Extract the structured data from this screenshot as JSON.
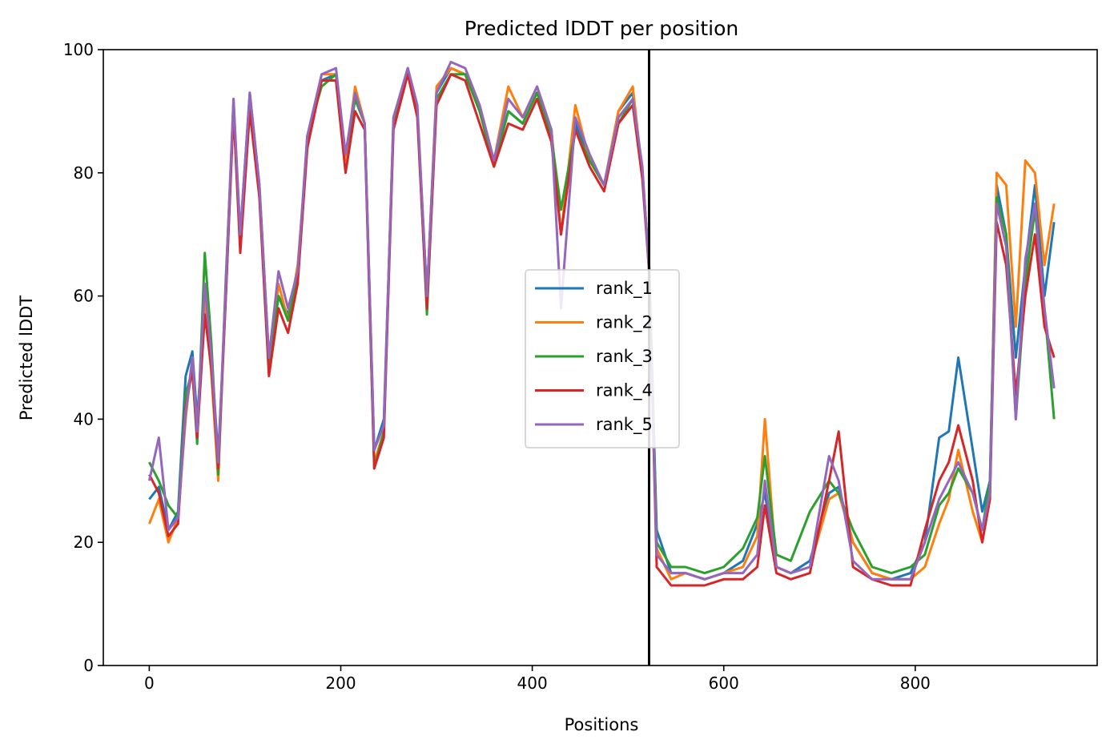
{
  "chart_data": {
    "type": "line",
    "title": "Predicted lDDT per position",
    "xlabel": "Positions",
    "ylabel": "Predicted lDDT",
    "xlim": [
      -48,
      990
    ],
    "ylim": [
      0,
      100
    ],
    "xticks": [
      0,
      200,
      400,
      600,
      800
    ],
    "yticks": [
      0,
      20,
      40,
      60,
      80,
      100
    ],
    "grid": false,
    "legend_position": "center",
    "vline": {
      "x": 522,
      "color": "#000000"
    },
    "colors": {
      "rank_1": "#1f77b4",
      "rank_2": "#ff7f0e",
      "rank_3": "#2ca02c",
      "rank_4": "#d62728",
      "rank_5": "#9467bd"
    },
    "x": [
      0,
      10,
      20,
      30,
      38,
      45,
      50,
      58,
      65,
      72,
      80,
      88,
      95,
      105,
      115,
      125,
      135,
      145,
      155,
      165,
      180,
      195,
      205,
      215,
      225,
      235,
      245,
      255,
      270,
      280,
      290,
      300,
      315,
      330,
      345,
      360,
      375,
      390,
      405,
      420,
      430,
      445,
      460,
      475,
      490,
      505,
      515,
      522,
      530,
      545,
      560,
      580,
      600,
      620,
      635,
      643,
      655,
      670,
      690,
      710,
      720,
      735,
      755,
      775,
      795,
      810,
      825,
      835,
      845,
      860,
      870,
      878,
      885,
      895,
      905,
      915,
      925,
      935,
      945
    ],
    "series": [
      {
        "name": "rank_1",
        "values": [
          27,
          29,
          22,
          25,
          47,
          51,
          40,
          58,
          50,
          34,
          60,
          91,
          70,
          93,
          78,
          50,
          60,
          57,
          64,
          85,
          95,
          96,
          82,
          92,
          88,
          35,
          40,
          88,
          97,
          90,
          60,
          93,
          97,
          96,
          90,
          82,
          90,
          88,
          93,
          87,
          70,
          88,
          82,
          78,
          90,
          93,
          80,
          65,
          22,
          15,
          15,
          14,
          15,
          17,
          23,
          28,
          16,
          15,
          17,
          28,
          29,
          20,
          15,
          14,
          15,
          20,
          37,
          38,
          50,
          35,
          25,
          30,
          78,
          70,
          50,
          65,
          78,
          60,
          72
        ]
      },
      {
        "name": "rank_2",
        "values": [
          23,
          27,
          20,
          24,
          40,
          50,
          38,
          60,
          47,
          30,
          62,
          92,
          68,
          92,
          77,
          48,
          62,
          56,
          65,
          84,
          96,
          96,
          82,
          94,
          88,
          33,
          38,
          89,
          97,
          90,
          60,
          94,
          97,
          96,
          91,
          82,
          94,
          89,
          94,
          87,
          70,
          91,
          82,
          78,
          90,
          94,
          80,
          65,
          19,
          14,
          15,
          14,
          15,
          16,
          21,
          40,
          16,
          15,
          16,
          27,
          28,
          20,
          15,
          14,
          14,
          16,
          23,
          27,
          35,
          25,
          20,
          28,
          80,
          78,
          55,
          82,
          80,
          65,
          75
        ]
      },
      {
        "name": "rank_3",
        "values": [
          33,
          30,
          26,
          24,
          44,
          48,
          36,
          67,
          52,
          31,
          63,
          90,
          69,
          92,
          77,
          48,
          60,
          56,
          63,
          86,
          94,
          96,
          83,
          92,
          88,
          32,
          38,
          88,
          96,
          90,
          57,
          92,
          96,
          96,
          90,
          81,
          90,
          88,
          93,
          86,
          74,
          87,
          82,
          78,
          88,
          92,
          80,
          65,
          20,
          16,
          16,
          15,
          16,
          19,
          24,
          34,
          18,
          17,
          25,
          30,
          28,
          22,
          16,
          15,
          16,
          18,
          26,
          28,
          32,
          28,
          22,
          30,
          76,
          70,
          40,
          62,
          74,
          58,
          40
        ]
      },
      {
        "name": "rank_4",
        "values": [
          31,
          28,
          21,
          23,
          42,
          48,
          37,
          57,
          48,
          32,
          60,
          90,
          67,
          90,
          76,
          47,
          58,
          54,
          62,
          84,
          95,
          95,
          80,
          90,
          87,
          32,
          37,
          87,
          96,
          89,
          58,
          91,
          96,
          95,
          88,
          81,
          88,
          87,
          92,
          85,
          70,
          87,
          81,
          77,
          88,
          91,
          79,
          64,
          16,
          13,
          13,
          13,
          14,
          14,
          16,
          26,
          15,
          14,
          15,
          30,
          38,
          16,
          14,
          13,
          13,
          22,
          30,
          33,
          39,
          30,
          20,
          27,
          72,
          65,
          44,
          60,
          70,
          55,
          50
        ]
      },
      {
        "name": "rank_5",
        "values": [
          30,
          37,
          22,
          24,
          41,
          50,
          38,
          62,
          50,
          33,
          62,
          92,
          70,
          93,
          78,
          50,
          64,
          58,
          64,
          86,
          96,
          97,
          83,
          93,
          88,
          35,
          39,
          89,
          97,
          91,
          60,
          93,
          98,
          97,
          91,
          82,
          92,
          89,
          94,
          87,
          58,
          89,
          83,
          78,
          89,
          92,
          81,
          64,
          18,
          15,
          15,
          14,
          15,
          15,
          18,
          30,
          16,
          15,
          16,
          34,
          30,
          17,
          14,
          14,
          14,
          20,
          27,
          30,
          33,
          28,
          22,
          28,
          75,
          68,
          40,
          66,
          75,
          58,
          45
        ]
      }
    ]
  }
}
